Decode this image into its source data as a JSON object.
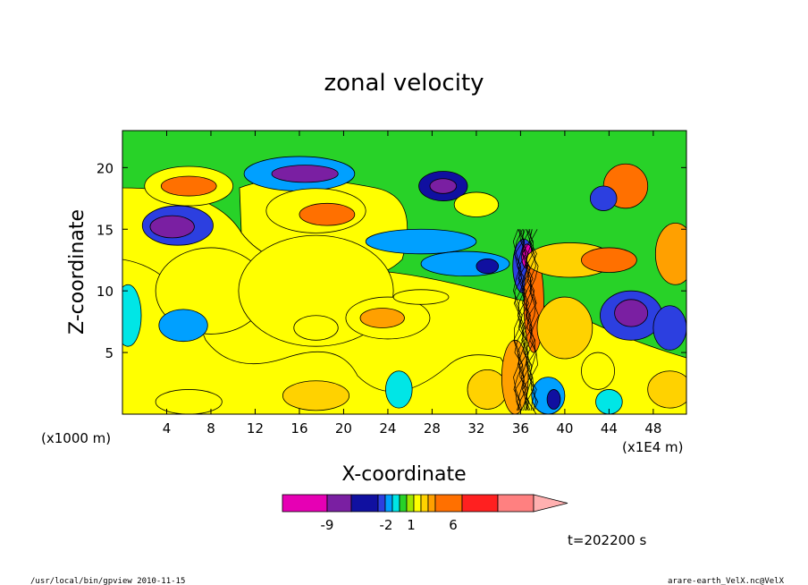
{
  "chart_data": {
    "type": "heatmap",
    "title": "zonal velocity",
    "xlabel": "X-coordinate",
    "ylabel": "Z-coordinate",
    "x_unit_left": "(x1000 m)",
    "x_unit_right": "(x1E4 m)",
    "x_ticks": [
      4,
      8,
      12,
      16,
      20,
      24,
      28,
      32,
      36,
      40,
      44,
      48
    ],
    "y_ticks": [
      5,
      10,
      15,
      20
    ],
    "xlim": [
      0,
      51
    ],
    "ylim": [
      0,
      23
    ],
    "time_label": "t=202200 s",
    "colorbar": {
      "colors": [
        "#e600b4",
        "#7a1fa2",
        "#1010a0",
        "#2c3fe0",
        "#00a0ff",
        "#00e6e6",
        "#28d228",
        "#a0e600",
        "#ffff00",
        "#ffd200",
        "#ffa000",
        "#ff7000",
        "#ff2020",
        "#ff8080",
        "#ffb0b0"
      ],
      "tick_labels": [
        "-9",
        "-2",
        "1",
        "6"
      ]
    },
    "regions": [
      {
        "v": 1,
        "cx": 6,
        "cy": 18.5,
        "rx": 4,
        "ry": 1.6
      },
      {
        "v": 4,
        "cx": 6,
        "cy": 18.5,
        "rx": 2.5,
        "ry": 0.8
      },
      {
        "v": -3,
        "cx": 5,
        "cy": 15.3,
        "rx": 3.2,
        "ry": 1.6
      },
      {
        "v": -6,
        "cx": 4.5,
        "cy": 15.2,
        "rx": 2,
        "ry": 0.9
      },
      {
        "v": 0.5,
        "cx": 8,
        "cy": 10,
        "rx": 5,
        "ry": 3.5
      },
      {
        "v": -2,
        "cx": 5.5,
        "cy": 7.2,
        "rx": 2.2,
        "ry": 1.3
      },
      {
        "v": -1,
        "cx": 0.5,
        "cy": 8,
        "rx": 1.2,
        "ry": 2.5
      },
      {
        "v": 0.5,
        "cx": 17.5,
        "cy": 10,
        "rx": 7,
        "ry": 4.5
      },
      {
        "v": 1,
        "cx": 17.5,
        "cy": 7,
        "rx": 2,
        "ry": 1
      },
      {
        "v": 2,
        "cx": 17.5,
        "cy": 1.5,
        "rx": 3,
        "ry": 1.2
      },
      {
        "v": 1,
        "cx": 6,
        "cy": 1,
        "rx": 3,
        "ry": 1
      },
      {
        "v": -2,
        "cx": 16,
        "cy": 19.5,
        "rx": 5,
        "ry": 1.4
      },
      {
        "v": -6,
        "cx": 16.5,
        "cy": 19.5,
        "rx": 3,
        "ry": 0.7
      },
      {
        "v": 1,
        "cx": 17.5,
        "cy": 16.5,
        "rx": 4.5,
        "ry": 1.8
      },
      {
        "v": 4,
        "cx": 18.5,
        "cy": 16.2,
        "rx": 2.5,
        "ry": 0.9
      },
      {
        "v": 1,
        "cx": 24,
        "cy": 7.8,
        "rx": 3.8,
        "ry": 1.7
      },
      {
        "v": 3,
        "cx": 23.5,
        "cy": 7.8,
        "rx": 2,
        "ry": 0.8
      },
      {
        "v": 1,
        "cx": 27,
        "cy": 9.5,
        "rx": 2.5,
        "ry": 0.6
      },
      {
        "v": -2,
        "cx": 27,
        "cy": 14,
        "rx": 5,
        "ry": 1
      },
      {
        "v": -2,
        "cx": 31,
        "cy": 12.2,
        "rx": 4,
        "ry": 1
      },
      {
        "v": -5,
        "cx": 33,
        "cy": 12,
        "rx": 1,
        "ry": 0.6
      },
      {
        "v": -4,
        "cx": 29,
        "cy": 18.5,
        "rx": 2.2,
        "ry": 1.2
      },
      {
        "v": -6,
        "cx": 29,
        "cy": 18.5,
        "rx": 1.2,
        "ry": 0.6
      },
      {
        "v": 1,
        "cx": 32,
        "cy": 17,
        "rx": 2,
        "ry": 1
      },
      {
        "v": -1,
        "cx": 25,
        "cy": 2,
        "rx": 1.2,
        "ry": 1.5
      },
      {
        "v": 2,
        "cx": 33,
        "cy": 2,
        "rx": 1.8,
        "ry": 1.6
      },
      {
        "v": 3,
        "cx": 35.5,
        "cy": 3,
        "rx": 1.2,
        "ry": 3
      },
      {
        "v": -3,
        "cx": 36.3,
        "cy": 12,
        "rx": 1,
        "ry": 2.2
      },
      {
        "v": -9,
        "cx": 36.6,
        "cy": 12.8,
        "rx": 0.5,
        "ry": 1
      },
      {
        "v": 4,
        "cx": 37.2,
        "cy": 9,
        "rx": 0.9,
        "ry": 4
      },
      {
        "v": 2,
        "cx": 40.5,
        "cy": 12.5,
        "rx": 4,
        "ry": 1.4
      },
      {
        "v": 2,
        "cx": 40,
        "cy": 7,
        "rx": 2.5,
        "ry": 2.5
      },
      {
        "v": -2,
        "cx": 38.5,
        "cy": 1.5,
        "rx": 1.5,
        "ry": 1.5
      },
      {
        "v": -5,
        "cx": 39,
        "cy": 1.2,
        "rx": 0.6,
        "ry": 0.8
      },
      {
        "v": 4,
        "cx": 44,
        "cy": 12.5,
        "rx": 2.5,
        "ry": 1
      },
      {
        "v": 4,
        "cx": 45.5,
        "cy": 18.5,
        "rx": 2,
        "ry": 1.8
      },
      {
        "v": -3,
        "cx": 43.5,
        "cy": 17.5,
        "rx": 1.2,
        "ry": 1
      },
      {
        "v": -3,
        "cx": 46,
        "cy": 8,
        "rx": 2.8,
        "ry": 2
      },
      {
        "v": -6,
        "cx": 46,
        "cy": 8.2,
        "rx": 1.5,
        "ry": 1.1
      },
      {
        "v": -3,
        "cx": 49.5,
        "cy": 7,
        "rx": 1.5,
        "ry": 1.8
      },
      {
        "v": 3,
        "cx": 50,
        "cy": 13,
        "rx": 1.8,
        "ry": 2.5
      },
      {
        "v": 2,
        "cx": 49.5,
        "cy": 2,
        "rx": 2,
        "ry": 1.5
      },
      {
        "v": 1,
        "cx": 43,
        "cy": 3.5,
        "rx": 1.5,
        "ry": 1.5
      },
      {
        "v": -1,
        "cx": 44,
        "cy": 1,
        "rx": 1.2,
        "ry": 1
      }
    ]
  },
  "footer": {
    "left": "/usr/local/bin/gpview 2010-11-15",
    "right": "arare-earth_VelX.nc@VelX"
  }
}
